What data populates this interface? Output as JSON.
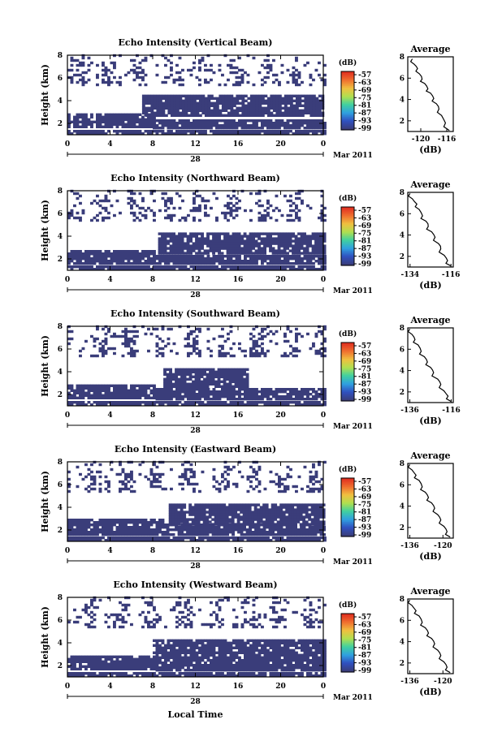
{
  "chart_data": [
    {
      "type": "heatmap",
      "title": "Echo Intensity (Vertical Beam)",
      "ylabel": "Height (km)",
      "xticks": [
        "0",
        "4",
        "8",
        "12",
        "16",
        "20",
        "0"
      ],
      "ylim": [
        1,
        8
      ],
      "yticks": [
        "2",
        "4",
        "6",
        "8"
      ],
      "date_mark": "28",
      "date_label": "Mar 2011",
      "colorbar": {
        "unit": "(dB)",
        "labels": [
          "-57",
          "-63",
          "-69",
          "-75",
          "-81",
          "-87",
          "-93",
          "-99"
        ],
        "colors": [
          "#e03020",
          "#f07030",
          "#f0c040",
          "#b0e050",
          "#40d0a0",
          "#30a0e0",
          "#3050c0",
          "#3a3d7a"
        ]
      },
      "regions": [
        {
          "from_h": 0,
          "to_h": 24,
          "lower_km": 1.0,
          "upper_km": 1.4,
          "value_db": -99
        },
        {
          "from_h": 0,
          "to_h": 8,
          "lower_km": 1.6,
          "upper_km": 2.8,
          "value_db": -99
        },
        {
          "from_h": 8,
          "to_h": 24,
          "lower_km": 1.5,
          "upper_km": 2.3,
          "value_db": -99
        },
        {
          "from_h": 7,
          "to_h": 24,
          "lower_km": 2.6,
          "upper_km": 4.4,
          "value_db": -99
        },
        {
          "from_h": 0,
          "to_h": 24,
          "lower_km": 5.3,
          "upper_km": 8.0,
          "value_db": -99,
          "sparse": true
        }
      ],
      "profile": {
        "title": "Average",
        "xlabel": "(dB)",
        "xlim": [
          -122,
          -115
        ],
        "xticks": [
          "-120",
          "-116"
        ],
        "ylim": [
          1,
          8
        ],
        "yticks": [
          "2",
          "4",
          "6",
          "8"
        ],
        "x": [
          -121.3,
          -121.0,
          -120.5,
          -120.2,
          -119.8,
          -119.4,
          -118.9,
          -118.5,
          -118.0,
          -117.6,
          -117.2,
          -116.8,
          -116.2,
          -115.6
        ],
        "y": [
          7.8,
          7.3,
          6.9,
          6.4,
          5.9,
          5.5,
          5.0,
          4.6,
          4.1,
          3.6,
          3.1,
          2.5,
          1.8,
          1.1
        ]
      }
    },
    {
      "type": "heatmap",
      "title": "Echo Intensity (Northward Beam)",
      "ylabel": "Height (km)",
      "xticks": [
        "0",
        "4",
        "8",
        "12",
        "16",
        "20",
        "0"
      ],
      "ylim": [
        1,
        8
      ],
      "yticks": [
        "2",
        "4",
        "6",
        "8"
      ],
      "date_mark": "28",
      "date_label": "Mar 2011",
      "colorbar": {
        "unit": "(dB)",
        "labels": [
          "-57",
          "-63",
          "-69",
          "-75",
          "-81",
          "-87",
          "-93",
          "-99"
        ],
        "colors": [
          "#e03020",
          "#f07030",
          "#f0c040",
          "#b0e050",
          "#40d0a0",
          "#30a0e0",
          "#3050c0",
          "#3a3d7a"
        ]
      },
      "regions": [
        {
          "from_h": 0,
          "to_h": 24,
          "lower_km": 1.0,
          "upper_km": 1.4,
          "value_db": -99
        },
        {
          "from_h": 0,
          "to_h": 8,
          "lower_km": 1.5,
          "upper_km": 2.6,
          "value_db": -99
        },
        {
          "from_h": 8,
          "to_h": 24,
          "lower_km": 1.5,
          "upper_km": 2.3,
          "value_db": -99
        },
        {
          "from_h": 8.5,
          "to_h": 24,
          "lower_km": 2.4,
          "upper_km": 4.3,
          "value_db": -99
        },
        {
          "from_h": 0,
          "to_h": 24,
          "lower_km": 5.3,
          "upper_km": 8.0,
          "value_db": -99,
          "sparse": true
        }
      ],
      "profile": {
        "title": "Average",
        "xlabel": "(dB)",
        "xlim": [
          -135,
          -115
        ],
        "xticks": [
          "-134",
          "-116"
        ],
        "ylim": [
          1,
          8
        ],
        "yticks": [
          "2",
          "4",
          "6",
          "8"
        ],
        "x": [
          -134.0,
          -133.0,
          -131.0,
          -130.0,
          -128.5,
          -127.0,
          -126.0,
          -124.5,
          -123.0,
          -121.5,
          -120.5,
          -119.0,
          -117.5,
          -116.0
        ],
        "y": [
          7.9,
          7.4,
          6.9,
          6.4,
          5.8,
          5.3,
          4.8,
          4.3,
          3.8,
          3.2,
          2.7,
          2.1,
          1.6,
          1.1
        ]
      }
    },
    {
      "type": "heatmap",
      "title": "Echo Intensity (Southward Beam)",
      "ylabel": "Height (km)",
      "xticks": [
        "0",
        "4",
        "8",
        "12",
        "16",
        "20",
        "0"
      ],
      "ylim": [
        1,
        8
      ],
      "yticks": [
        "2",
        "4",
        "6",
        "8"
      ],
      "date_mark": "28",
      "date_label": "Mar 2011",
      "colorbar": {
        "unit": "(dB)",
        "labels": [
          "-57",
          "-63",
          "-69",
          "-75",
          "-81",
          "-87",
          "-93",
          "-99"
        ],
        "colors": [
          "#e03020",
          "#f07030",
          "#f0c040",
          "#b0e050",
          "#40d0a0",
          "#30a0e0",
          "#3050c0",
          "#3a3d7a"
        ]
      },
      "regions": [
        {
          "from_h": 0,
          "to_h": 24,
          "lower_km": 1.0,
          "upper_km": 1.4,
          "value_db": -99
        },
        {
          "from_h": 0,
          "to_h": 8,
          "lower_km": 1.6,
          "upper_km": 2.8,
          "value_db": -99
        },
        {
          "from_h": 8,
          "to_h": 24,
          "lower_km": 1.5,
          "upper_km": 2.5,
          "value_db": -99
        },
        {
          "from_h": 9,
          "to_h": 17,
          "lower_km": 2.6,
          "upper_km": 4.2,
          "value_db": -99
        },
        {
          "from_h": 0,
          "to_h": 24,
          "lower_km": 5.3,
          "upper_km": 8.0,
          "value_db": -99,
          "sparse": true
        }
      ],
      "profile": {
        "title": "Average",
        "xlabel": "(dB)",
        "xlim": [
          -137,
          -115
        ],
        "xticks": [
          "-136",
          "-116"
        ],
        "ylim": [
          1,
          8
        ],
        "yticks": [
          "2",
          "4",
          "6",
          "8"
        ],
        "x": [
          -136.0,
          -135.0,
          -133.5,
          -132.0,
          -130.5,
          -129.0,
          -127.5,
          -126.0,
          -124.5,
          -122.5,
          -121.0,
          -119.5,
          -117.5,
          -116.0
        ],
        "y": [
          7.9,
          7.4,
          6.9,
          6.4,
          5.8,
          5.3,
          4.8,
          4.3,
          3.8,
          3.2,
          2.7,
          2.1,
          1.6,
          1.1
        ]
      }
    },
    {
      "type": "heatmap",
      "title": "Echo Intensity (Eastward Beam)",
      "ylabel": "Height (km)",
      "xticks": [
        "0",
        "4",
        "8",
        "12",
        "16",
        "20",
        "0"
      ],
      "ylim": [
        1,
        8
      ],
      "yticks": [
        "2",
        "4",
        "6",
        "8"
      ],
      "date_mark": "28",
      "date_label": "Mar 2011",
      "colorbar": {
        "unit": "(dB)",
        "labels": [
          "-57",
          "-63",
          "-69",
          "-75",
          "-81",
          "-87",
          "-93",
          "-99"
        ],
        "colors": [
          "#e03020",
          "#f07030",
          "#f0c040",
          "#b0e050",
          "#40d0a0",
          "#30a0e0",
          "#3050c0",
          "#3a3d7a"
        ]
      },
      "regions": [
        {
          "from_h": 0,
          "to_h": 24,
          "lower_km": 1.0,
          "upper_km": 1.4,
          "value_db": -99
        },
        {
          "from_h": 0,
          "to_h": 9,
          "lower_km": 1.5,
          "upper_km": 2.8,
          "value_db": -99
        },
        {
          "from_h": 9,
          "to_h": 24,
          "lower_km": 1.5,
          "upper_km": 2.4,
          "value_db": -99
        },
        {
          "from_h": 9.5,
          "to_h": 24,
          "lower_km": 2.4,
          "upper_km": 4.2,
          "value_db": -99
        },
        {
          "from_h": 0,
          "to_h": 24,
          "lower_km": 5.3,
          "upper_km": 8.0,
          "value_db": -99,
          "sparse": true
        }
      ],
      "profile": {
        "title": "Average",
        "xlabel": "(dB)",
        "xlim": [
          -137,
          -115
        ],
        "xticks": [
          "-136",
          "-120"
        ],
        "ylim": [
          1,
          8
        ],
        "yticks": [
          "2",
          "4",
          "6",
          "8"
        ],
        "x": [
          -136.0,
          -135.0,
          -133.0,
          -131.5,
          -130.0,
          -128.5,
          -127.0,
          -125.5,
          -124.0,
          -122.5,
          -121.0,
          -119.5,
          -118.0,
          -116.5
        ],
        "y": [
          7.9,
          7.4,
          6.9,
          6.4,
          5.8,
          5.3,
          4.8,
          4.3,
          3.8,
          3.2,
          2.7,
          2.1,
          1.6,
          1.1
        ]
      }
    },
    {
      "type": "heatmap",
      "title": "Echo Intensity (Westward Beam)",
      "ylabel": "Height (km)",
      "xlabel": "Local Time",
      "xticks": [
        "0",
        "4",
        "8",
        "12",
        "16",
        "20",
        "0"
      ],
      "ylim": [
        1,
        8
      ],
      "yticks": [
        "2",
        "4",
        "6",
        "8"
      ],
      "date_mark": "28",
      "date_label": "Mar 2011",
      "colorbar": {
        "unit": "(dB)",
        "labels": [
          "-57",
          "-63",
          "-69",
          "-75",
          "-81",
          "-87",
          "-93",
          "-99"
        ],
        "colors": [
          "#e03020",
          "#f07030",
          "#f0c040",
          "#b0e050",
          "#40d0a0",
          "#30a0e0",
          "#3050c0",
          "#3a3d7a"
        ]
      },
      "regions": [
        {
          "from_h": 0,
          "to_h": 24,
          "lower_km": 1.0,
          "upper_km": 1.4,
          "value_db": -99
        },
        {
          "from_h": 0,
          "to_h": 8,
          "lower_km": 1.6,
          "upper_km": 2.8,
          "value_db": -99
        },
        {
          "from_h": 8,
          "to_h": 24,
          "lower_km": 1.5,
          "upper_km": 2.4,
          "value_db": -99
        },
        {
          "from_h": 8,
          "to_h": 24,
          "lower_km": 2.6,
          "upper_km": 4.3,
          "value_db": -99
        },
        {
          "from_h": 0,
          "to_h": 24,
          "lower_km": 5.3,
          "upper_km": 8.0,
          "value_db": -99,
          "sparse": true
        }
      ],
      "profile": {
        "title": "Average",
        "xlabel": "(dB)",
        "xlim": [
          -137,
          -115
        ],
        "xticks": [
          "-136",
          "-120"
        ],
        "ylim": [
          1,
          8
        ],
        "yticks": [
          "2",
          "4",
          "6",
          "8"
        ],
        "x": [
          -136.0,
          -135.0,
          -133.0,
          -131.5,
          -130.0,
          -128.5,
          -127.0,
          -125.5,
          -124.0,
          -122.5,
          -121.0,
          -119.5,
          -118.0,
          -116.5
        ],
        "y": [
          7.9,
          7.4,
          6.9,
          6.4,
          5.8,
          5.3,
          4.8,
          4.3,
          3.8,
          3.2,
          2.7,
          2.1,
          1.6,
          1.1
        ]
      }
    }
  ]
}
